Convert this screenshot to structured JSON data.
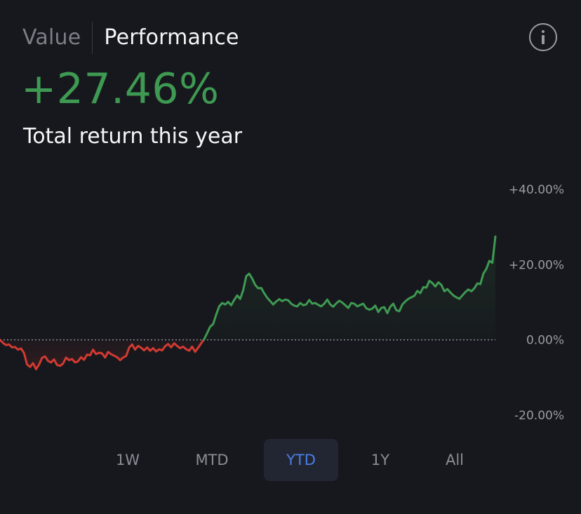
{
  "header": {
    "tabs": [
      {
        "label": "Value",
        "active": false
      },
      {
        "label": "Performance",
        "active": true
      }
    ],
    "info_icon": "info-circle-icon"
  },
  "summary": {
    "value": "+27.46%",
    "caption": "Total return this year"
  },
  "colors": {
    "background": "#17181d",
    "positive": "#3e9a52",
    "negative": "#d23a32",
    "accent": "#4a7ee6",
    "muted": "#9a9ca3"
  },
  "chart_data": {
    "type": "line",
    "title": "",
    "xlabel": "",
    "ylabel": "",
    "ylim": [
      -20,
      40
    ],
    "yticks": [
      40,
      20,
      0,
      -20
    ],
    "ytick_labels": [
      "+40.00%",
      "+20.00%",
      "0.00%",
      "-20.00%"
    ],
    "baseline": 0,
    "grid": false,
    "series": [
      {
        "values": [
          0,
          -0.8,
          -1.4,
          -1.2,
          -2.0,
          -1.9,
          -2.6,
          -2.3,
          -3.5,
          -6.5,
          -7.2,
          -6.2,
          -7.8,
          -6.6,
          -4.8,
          -4.4,
          -5.6,
          -6.0,
          -5.2,
          -6.7,
          -6.9,
          -6.3,
          -4.7,
          -5.4,
          -5.1,
          -6.0,
          -5.7,
          -4.6,
          -5.3,
          -3.9,
          -4.1,
          -2.6,
          -3.8,
          -3.4,
          -3.6,
          -4.7,
          -3.2,
          -3.8,
          -4.2,
          -4.6,
          -5.4,
          -4.7,
          -4.3,
          -2.1,
          -1.2,
          -2.6,
          -1.6,
          -2.1,
          -2.8,
          -2.0,
          -2.9,
          -2.2,
          -3.1,
          -2.5,
          -2.8,
          -1.7,
          -1.1,
          -2.0,
          -0.9,
          -1.6,
          -2.2,
          -1.8,
          -2.5,
          -2.9,
          -1.8,
          -3.2,
          -2.1,
          -0.9,
          0.2,
          1.8,
          3.5,
          4.2,
          6.7,
          8.9,
          9.8,
          9.4,
          10.1,
          9.2,
          10.6,
          11.8,
          10.9,
          13.2,
          16.9,
          17.6,
          16.3,
          14.6,
          13.7,
          13.8,
          12.4,
          11.2,
          10.3,
          9.4,
          10.2,
          10.8,
          10.3,
          10.7,
          10.5,
          9.6,
          9.1,
          8.9,
          9.8,
          9.2,
          9.4,
          10.6,
          9.6,
          9.8,
          9.3,
          8.9,
          9.6,
          10.7,
          9.4,
          8.8,
          9.7,
          10.4,
          9.9,
          9.2,
          8.5,
          9.8,
          9.6,
          8.9,
          9.3,
          9.6,
          8.4,
          8.0,
          8.3,
          9.1,
          7.4,
          8.5,
          8.7,
          7.1,
          8.8,
          9.6,
          7.9,
          7.6,
          9.4,
          10.2,
          10.9,
          11.3,
          11.7,
          13.0,
          12.4,
          14.0,
          13.9,
          15.7,
          15.1,
          14.2,
          15.3,
          14.6,
          12.9,
          13.5,
          12.6,
          11.8,
          11.3,
          10.9,
          11.8,
          12.7,
          13.4,
          12.9,
          13.7,
          15.0,
          14.8,
          17.6,
          18.9,
          21.0,
          20.5,
          27.46
        ]
      }
    ]
  },
  "ranges": {
    "options": [
      "1W",
      "MTD",
      "YTD",
      "1Y",
      "All"
    ],
    "selected": "YTD"
  }
}
